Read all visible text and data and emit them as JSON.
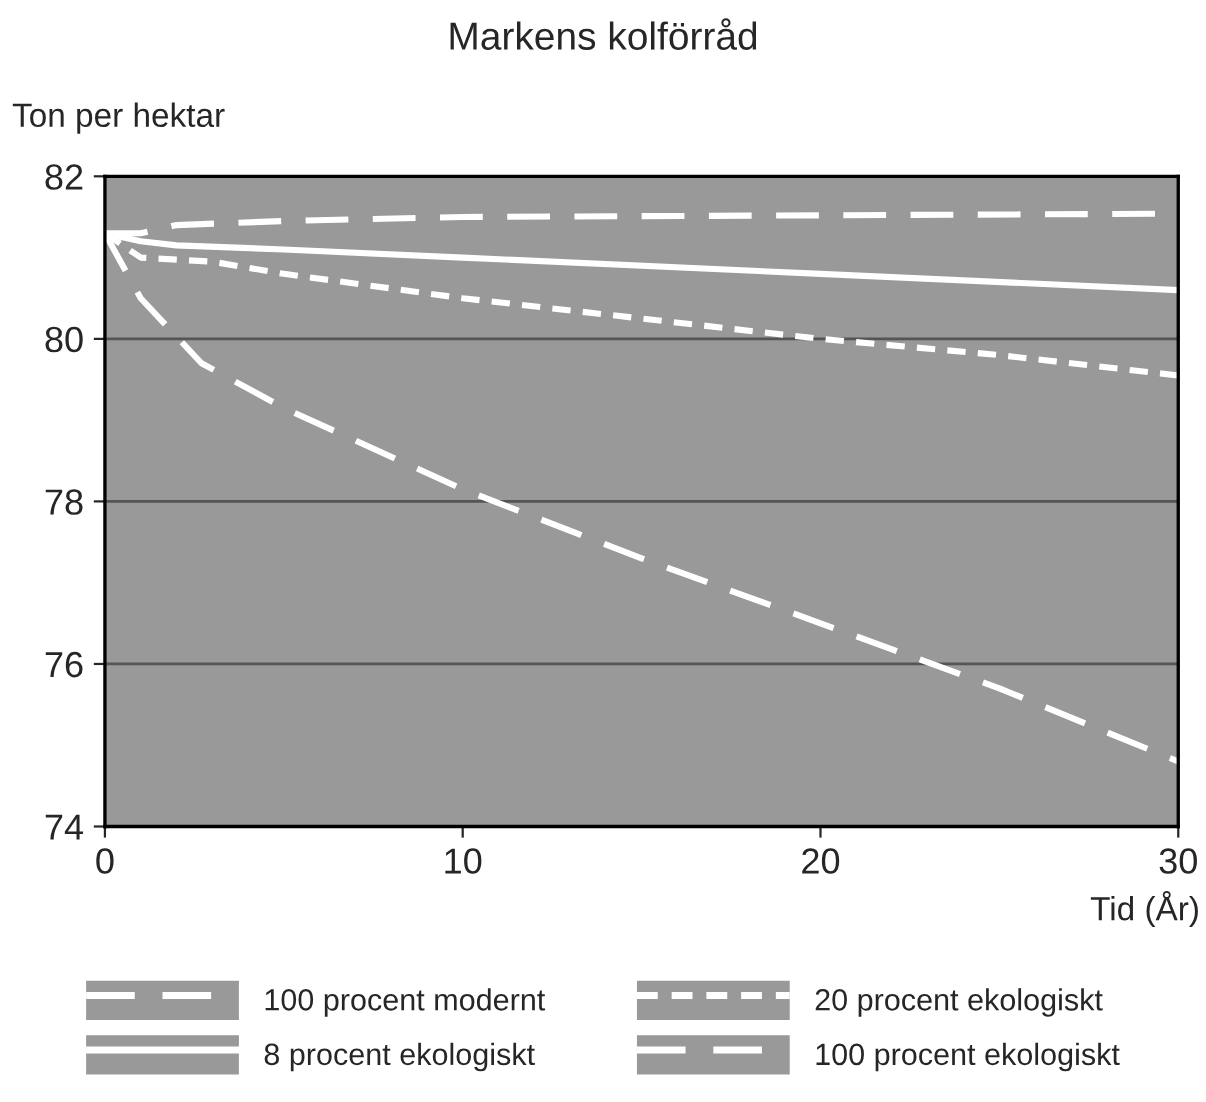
{
  "chart_data": {
    "type": "line",
    "title": "Markens kolförråd",
    "ylabel": "Ton per hektar",
    "xlabel": "Tid (År)",
    "xlim": [
      0,
      30
    ],
    "xticks": [
      0,
      10,
      20,
      30
    ],
    "ylim": [
      74,
      82
    ],
    "yticks": [
      74,
      76,
      78,
      80,
      82
    ],
    "grid": "y",
    "legend": "bottom",
    "marker": "none",
    "series": [
      {
        "name": "100 procent modernt",
        "color": "#ffffff",
        "line_style": "dashed",
        "x": [
          0,
          1,
          2,
          5,
          10,
          20,
          30
        ],
        "values": [
          81.3,
          81.3,
          81.4,
          81.45,
          81.5,
          81.52,
          81.54
        ]
      },
      {
        "name": "8 procent ekologiskt",
        "color": "#ffffff",
        "line_style": "solid",
        "x": [
          0,
          1,
          2,
          5,
          10,
          20,
          30
        ],
        "values": [
          81.3,
          81.2,
          81.15,
          81.1,
          81.0,
          80.8,
          80.6
        ]
      },
      {
        "name": "20 procent ekologiskt",
        "color": "#ffffff",
        "line_style": "dotted",
        "x": [
          0,
          1,
          3,
          5,
          10,
          15,
          20,
          25,
          30
        ],
        "values": [
          81.3,
          81.0,
          80.95,
          80.8,
          80.5,
          80.25,
          80.0,
          79.8,
          79.55
        ]
      },
      {
        "name": "100 procent ekologiskt",
        "color": "#ffffff",
        "line_style": "dashed",
        "x": [
          0,
          1,
          2.7,
          5,
          10,
          15,
          20,
          25,
          30
        ],
        "values": [
          81.3,
          80.5,
          79.7,
          79.15,
          78.15,
          77.3,
          76.5,
          75.7,
          74.8
        ]
      }
    ]
  }
}
